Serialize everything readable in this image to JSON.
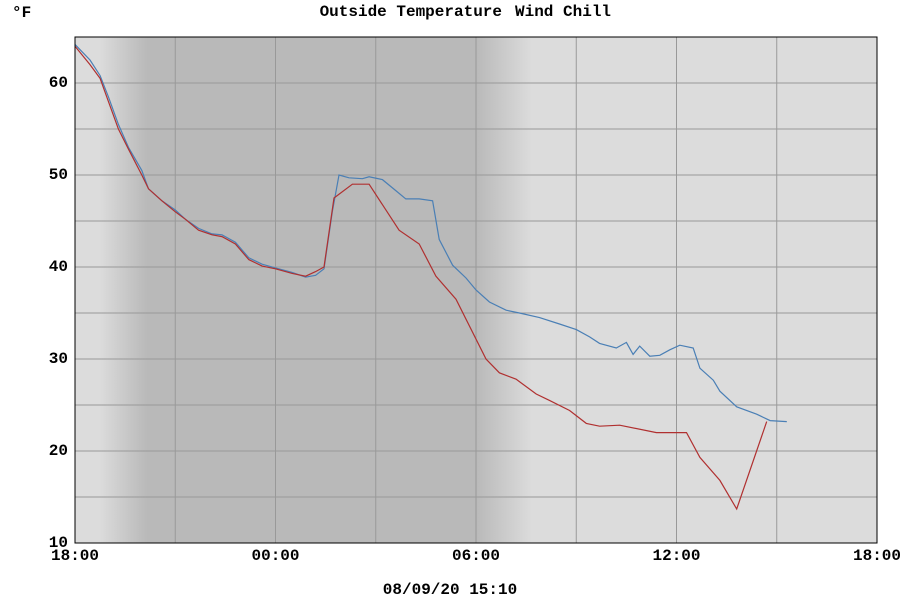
{
  "chart_data": {
    "type": "line",
    "title_parts": [
      "Outside Temperature",
      "Wind Chill"
    ],
    "y_unit": "°F",
    "footer": "08/09/20 15:10",
    "xlim": [
      0,
      24
    ],
    "xticks": [
      {
        "value": 0,
        "label": "18:00"
      },
      {
        "value": 6,
        "label": "00:00"
      },
      {
        "value": 12,
        "label": "06:00"
      },
      {
        "value": 18,
        "label": "12:00"
      },
      {
        "value": 24,
        "label": "18:00"
      }
    ],
    "x_minor_ticks": [
      3,
      9,
      15,
      21
    ],
    "ylim": [
      10,
      65
    ],
    "yticks": [
      10,
      20,
      30,
      40,
      50,
      60
    ],
    "y_minor_ticks": [
      15,
      25,
      35,
      45,
      55,
      65
    ],
    "grid": true,
    "series": [
      {
        "name": "Outside Temperature",
        "color": "#4a7fb5",
        "x": [
          0,
          0.45,
          0.75,
          1,
          1.3,
          1.6,
          2,
          2.2,
          2.6,
          3,
          3.3,
          3.7,
          4.1,
          4.4,
          4.8,
          5.2,
          5.6,
          6,
          6.5,
          6.9,
          7.2,
          7.45,
          7.7,
          7.9,
          8.2,
          8.6,
          8.8,
          9.2,
          9.6,
          9.9,
          10.3,
          10.7,
          10.9,
          11.3,
          11.7,
          12,
          12.4,
          12.9,
          13.3,
          13.9,
          14.5,
          15,
          15.4,
          15.7,
          16.2,
          16.5,
          16.7,
          16.9,
          17.2,
          17.5,
          17.8,
          18.1,
          18.5,
          18.7,
          19.1,
          19.3,
          19.8,
          20.4,
          20.8,
          21.3
        ],
        "values": [
          64.2,
          62.5,
          60.8,
          58.5,
          55.5,
          53,
          50.5,
          48.5,
          47.2,
          46.2,
          45.2,
          44.2,
          43.6,
          43.5,
          42.7,
          41,
          40.3,
          39.9,
          39.4,
          38.9,
          39.1,
          39.8,
          46,
          50,
          49.7,
          49.6,
          49.8,
          49.5,
          48.3,
          47.4,
          47.4,
          47.2,
          43,
          40.2,
          38.8,
          37.5,
          36.2,
          35.3,
          35,
          34.5,
          33.8,
          33.2,
          32.4,
          31.7,
          31.2,
          31.8,
          30.5,
          31.4,
          30.3,
          30.4,
          31,
          31.5,
          31.2,
          29,
          27.7,
          26.5,
          24.8,
          24,
          23.3,
          23.2
        ]
      },
      {
        "name": "Wind Chill",
        "color": "#b03030",
        "x": [
          0,
          0.45,
          0.75,
          1,
          1.3,
          1.6,
          2,
          2.2,
          2.6,
          3,
          3.3,
          3.7,
          4.1,
          4.4,
          4.8,
          5.2,
          5.6,
          6,
          6.5,
          6.9,
          7.2,
          7.45,
          7.75,
          8.3,
          8.8,
          9.7,
          10.3,
          10.8,
          11.4,
          12.3,
          12.7,
          13.2,
          13.8,
          14.2,
          14.8,
          15.3,
          15.7,
          16.3,
          17.4,
          18.3,
          18.7,
          19.3,
          19.8,
          20.7
        ],
        "values": [
          64,
          62,
          60.5,
          58,
          55,
          52.8,
          50,
          48.5,
          47.2,
          46,
          45.2,
          44,
          43.5,
          43.3,
          42.5,
          40.8,
          40.1,
          39.8,
          39.3,
          39,
          39.5,
          40,
          47.5,
          49,
          49,
          44,
          42.5,
          39,
          36.5,
          30,
          28.5,
          27.8,
          26.2,
          25.5,
          24.4,
          23,
          22.7,
          22.8,
          22,
          22,
          19.3,
          16.8,
          13.7,
          23.2
        ]
      }
    ]
  }
}
